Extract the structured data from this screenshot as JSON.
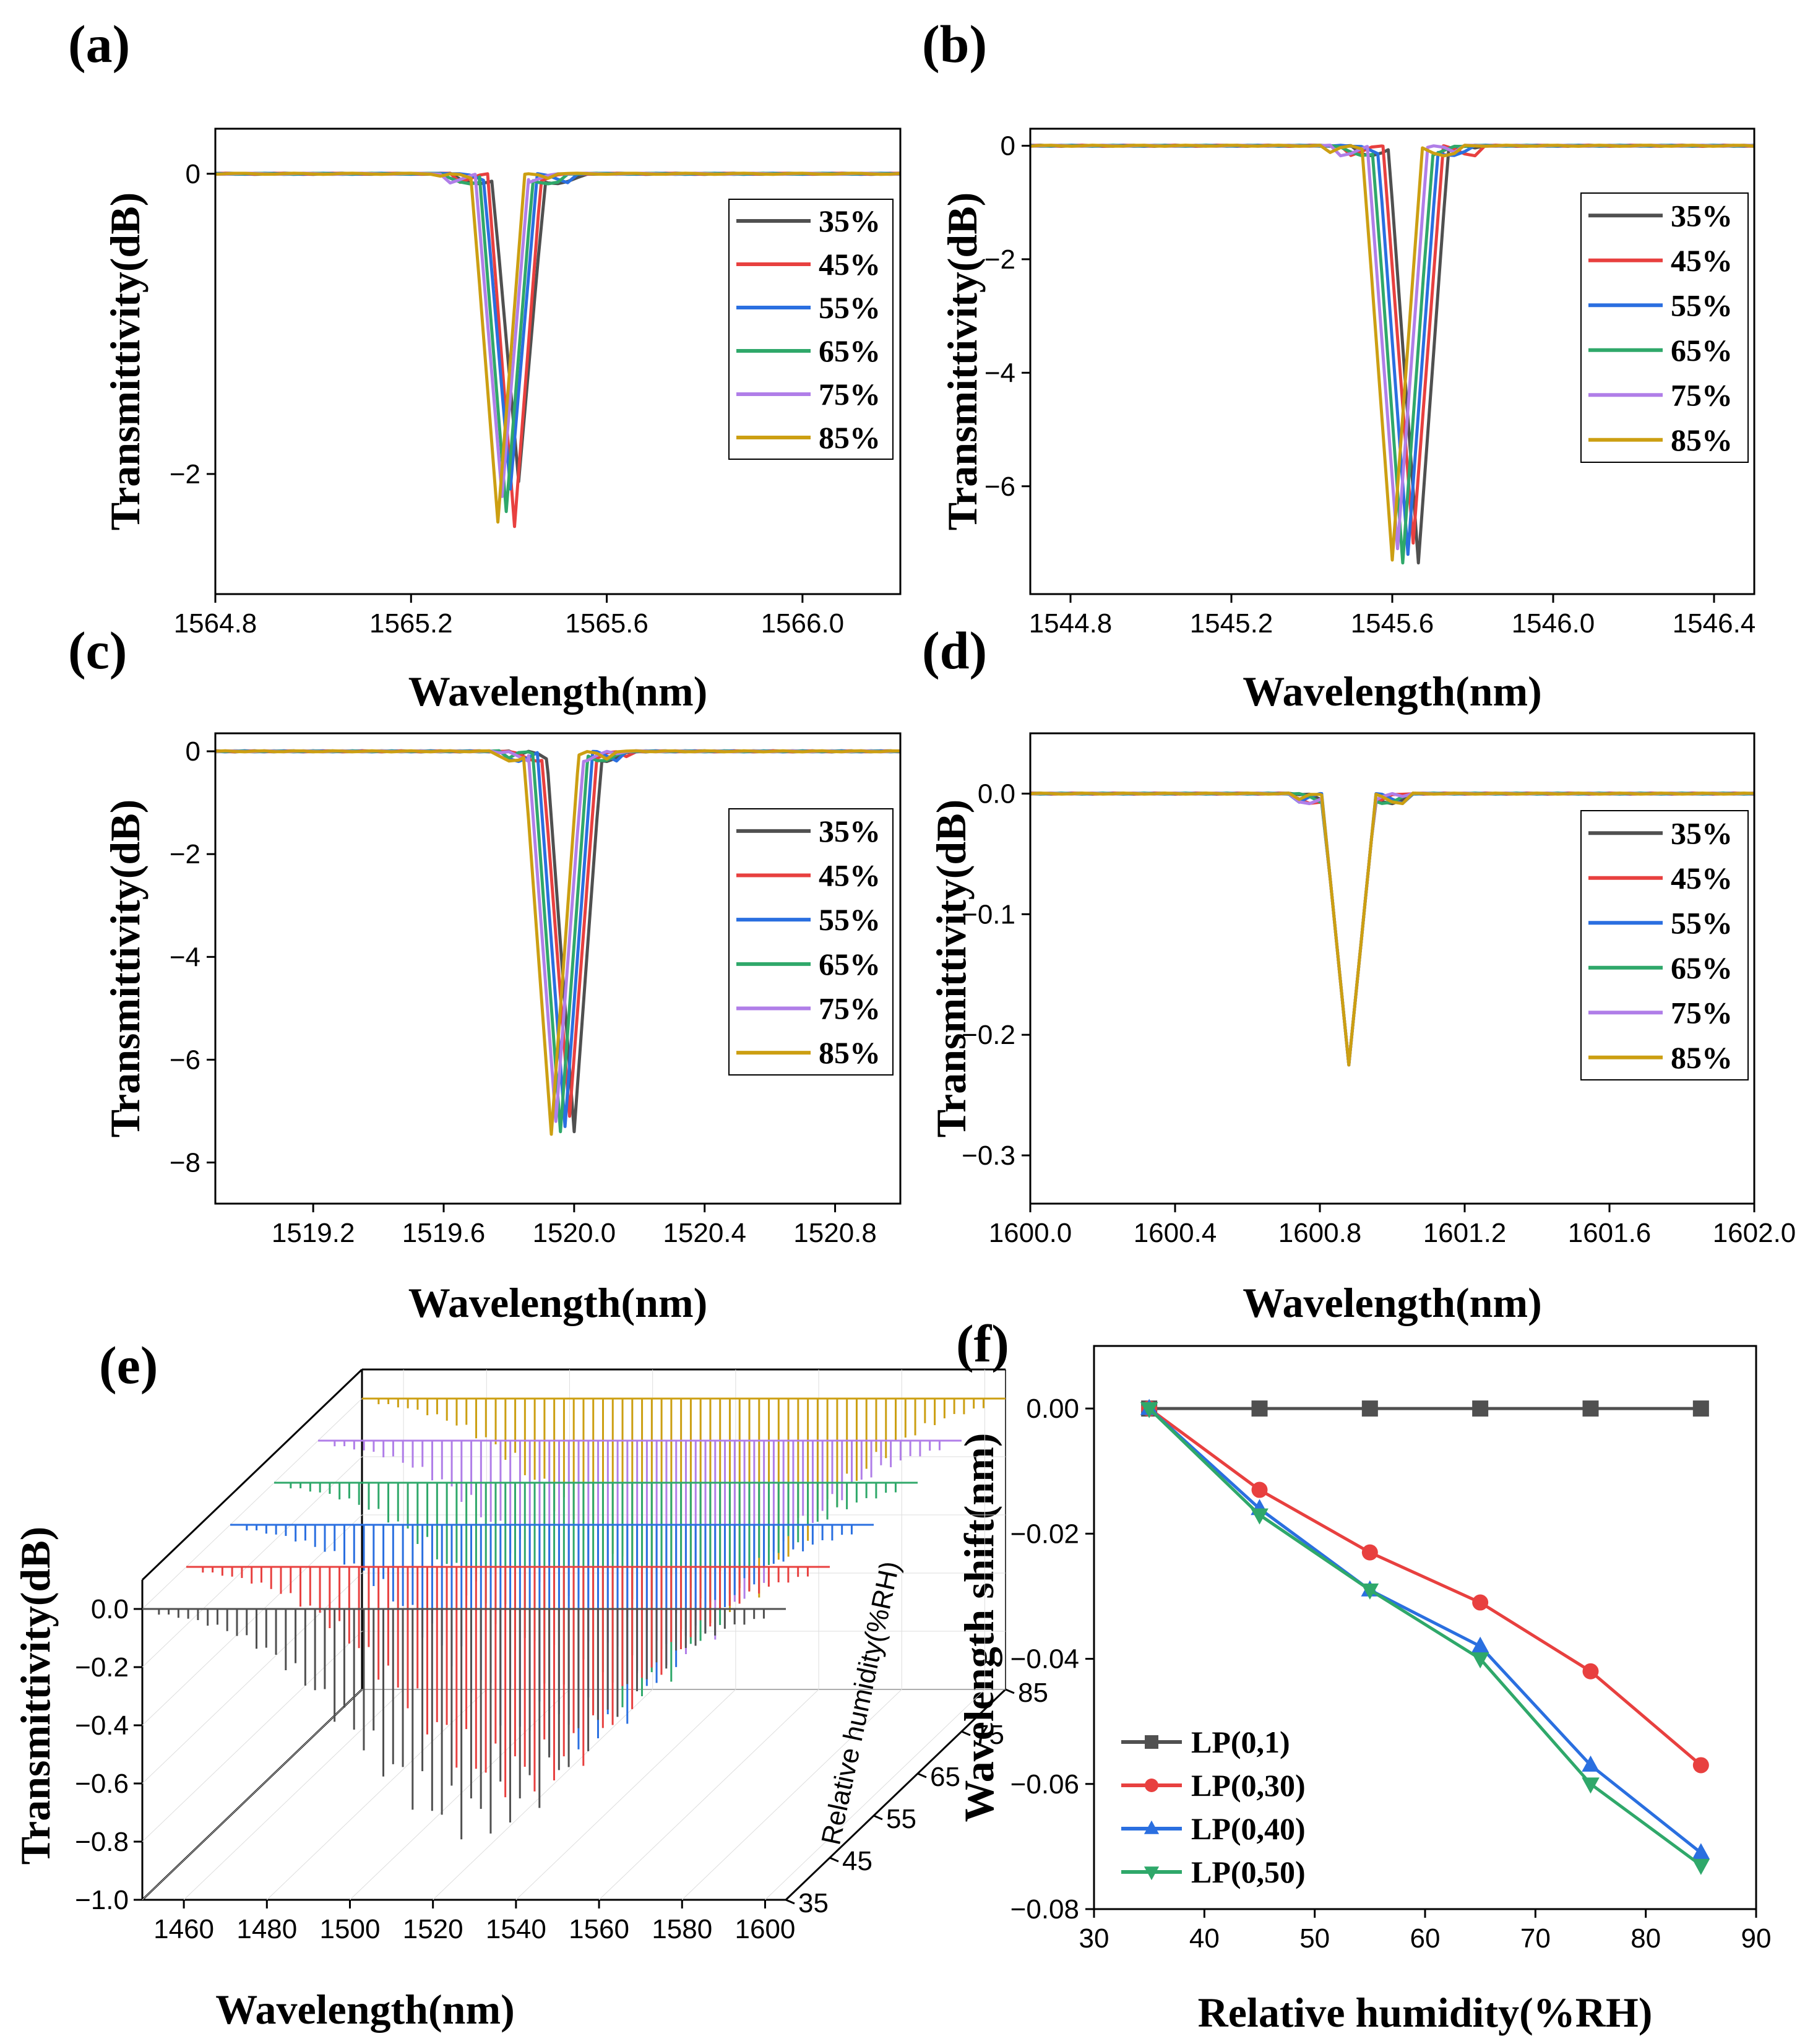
{
  "figure": {
    "colors": {
      "35%": "#505050",
      "45%": "#e8403f",
      "55%": "#2a6fe0",
      "65%": "#2fa86a",
      "75%": "#b07ee8",
      "85%": "#cc9f12",
      "LP(0,1)": "#505050",
      "LP(0,30)": "#e8403f",
      "LP(0,40)": "#2a6fe0",
      "LP(0,50)": "#2fa86a"
    }
  },
  "chart_data": [
    {
      "id": "a",
      "panel_label": "(a)",
      "type": "line",
      "xlabel": "Wavelength(nm)",
      "ylabel": "Transmittivity(dB)",
      "xlim": [
        1564.8,
        1566.2
      ],
      "ylim": [
        -2.8,
        0.3
      ],
      "xticks": [
        "1564.8",
        "1565.2",
        "1565.6",
        "1566.0"
      ],
      "xtick_values": [
        1564.8,
        1565.2,
        1565.6,
        1566.0
      ],
      "yticks": [
        "0",
        "−2"
      ],
      "ytick_values": [
        0,
        -2
      ],
      "dip_center": 1565.42,
      "dip_shift_per_10RH": -0.0085,
      "dip_halfwidth": 0.055,
      "legend": [
        "35%",
        "45%",
        "55%",
        "65%",
        "75%",
        "85%"
      ],
      "series": [
        {
          "name": "35%",
          "dip_depth": -2.05
        },
        {
          "name": "45%",
          "dip_depth": -2.35
        },
        {
          "name": "55%",
          "dip_depth": -2.1
        },
        {
          "name": "65%",
          "dip_depth": -2.25
        },
        {
          "name": "75%",
          "dip_depth": -2.15
        },
        {
          "name": "85%",
          "dip_depth": -2.32
        }
      ]
    },
    {
      "id": "b",
      "panel_label": "(b)",
      "type": "line",
      "xlabel": "Wavelength(nm)",
      "ylabel": "Transmittivity(dB)",
      "xlim": [
        1544.7,
        1546.5
      ],
      "ylim": [
        -7.9,
        0.3
      ],
      "xticks": [
        "1544.8",
        "1545.2",
        "1545.6",
        "1546.0",
        "1546.4"
      ],
      "xtick_values": [
        1544.8,
        1545.2,
        1545.6,
        1546.0,
        1546.4
      ],
      "yticks": [
        "0",
        "−2",
        "−4",
        "−6"
      ],
      "ytick_values": [
        0,
        -2,
        -4,
        -6
      ],
      "dip_center": 1545.665,
      "dip_shift_per_10RH": -0.013,
      "dip_halfwidth": 0.075,
      "legend": [
        "35%",
        "45%",
        "55%",
        "65%",
        "75%",
        "85%"
      ],
      "series": [
        {
          "name": "35%",
          "dip_depth": -7.35
        },
        {
          "name": "45%",
          "dip_depth": -7.0
        },
        {
          "name": "55%",
          "dip_depth": -7.2
        },
        {
          "name": "65%",
          "dip_depth": -7.35
        },
        {
          "name": "75%",
          "dip_depth": -7.1
        },
        {
          "name": "85%",
          "dip_depth": -7.3
        }
      ]
    },
    {
      "id": "c",
      "panel_label": "(c)",
      "type": "line",
      "xlabel": "Wavelength(nm)",
      "ylabel": "Transmittivity(dB)",
      "xlim": [
        1518.9,
        1521.0
      ],
      "ylim": [
        -8.8,
        0.35
      ],
      "xticks": [
        "1519.2",
        "1519.6",
        "1520.0",
        "1520.4",
        "1520.8"
      ],
      "xtick_values": [
        1519.2,
        1519.6,
        1520.0,
        1520.4,
        1520.8
      ],
      "yticks": [
        "0",
        "−2",
        "−4",
        "−6",
        "−8"
      ],
      "ytick_values": [
        0,
        -2,
        -4,
        -6,
        -8
      ],
      "dip_center": 1520.0,
      "dip_shift_per_10RH": -0.014,
      "dip_halfwidth": 0.085,
      "legend": [
        "35%",
        "45%",
        "55%",
        "65%",
        "75%",
        "85%"
      ],
      "series": [
        {
          "name": "35%",
          "dip_depth": -7.4
        },
        {
          "name": "45%",
          "dip_depth": -7.1
        },
        {
          "name": "55%",
          "dip_depth": -7.3
        },
        {
          "name": "65%",
          "dip_depth": -7.4
        },
        {
          "name": "75%",
          "dip_depth": -7.2
        },
        {
          "name": "85%",
          "dip_depth": -7.45
        }
      ]
    },
    {
      "id": "d",
      "panel_label": "(d)",
      "type": "line",
      "xlabel": "Wavelength(nm)",
      "ylabel": "Transmittivity(dB)",
      "xlim": [
        1600.0,
        1602.0
      ],
      "ylim": [
        -0.34,
        0.05
      ],
      "xticks": [
        "1600.0",
        "1600.4",
        "1600.8",
        "1601.2",
        "1601.6",
        "1602.0"
      ],
      "xtick_values": [
        1600.0,
        1600.4,
        1600.8,
        1601.2,
        1601.6,
        1602.0
      ],
      "yticks": [
        "0.0",
        "−0.1",
        "−0.2",
        "−0.3"
      ],
      "ytick_values": [
        0.0,
        -0.1,
        -0.2,
        -0.3
      ],
      "dip_center": 1600.88,
      "dip_shift_per_10RH": 0.0,
      "dip_halfwidth": 0.075,
      "legend": [
        "35%",
        "45%",
        "55%",
        "65%",
        "75%",
        "85%"
      ],
      "series": [
        {
          "name": "35%",
          "dip_depth": -0.225
        },
        {
          "name": "45%",
          "dip_depth": -0.225
        },
        {
          "name": "55%",
          "dip_depth": -0.225
        },
        {
          "name": "65%",
          "dip_depth": -0.225
        },
        {
          "name": "75%",
          "dip_depth": -0.225
        },
        {
          "name": "85%",
          "dip_depth": -0.225
        }
      ]
    },
    {
      "id": "e",
      "panel_label": "(e)",
      "type": "line",
      "subtype": "3d-waterfall",
      "xlabel": "Wavelength(nm)",
      "ylabel": "Transmittivity(dB)",
      "zlabel": "Relative humidity(%RH)",
      "xlim": [
        1450,
        1605
      ],
      "ylim": [
        -1.0,
        0.1
      ],
      "xticks": [
        "1460",
        "1480",
        "1500",
        "1520",
        "1540",
        "1560",
        "1580",
        "1600"
      ],
      "xtick_values": [
        1460,
        1480,
        1500,
        1520,
        1540,
        1560,
        1580,
        1600
      ],
      "yticks": [
        "0.0",
        "−0.2",
        "−0.4",
        "−0.6",
        "−0.8",
        "−1.0"
      ],
      "ytick_values": [
        0.0,
        -0.2,
        -0.4,
        -0.6,
        -0.8,
        -1.0
      ],
      "zticks": [
        "35",
        "45",
        "55",
        "65",
        "75",
        "85"
      ],
      "ztick_values": [
        35,
        45,
        55,
        65,
        75,
        85
      ],
      "peak_center": 1530,
      "peak_sigma": 28,
      "peak_depth": -0.8,
      "series": [
        "35%",
        "45%",
        "55%",
        "65%",
        "75%",
        "85%"
      ]
    },
    {
      "id": "f",
      "panel_label": "(f)",
      "type": "line",
      "xlabel": "Relative humidity(%RH)",
      "ylabel": "Wavelength shift(nm)",
      "xlim": [
        30,
        90
      ],
      "ylim": [
        -0.08,
        0.01
      ],
      "xticks": [
        "30",
        "40",
        "50",
        "60",
        "70",
        "80",
        "90"
      ],
      "xtick_values": [
        30,
        40,
        50,
        60,
        70,
        80,
        90
      ],
      "yticks": [
        "0.00",
        "−0.02",
        "−0.04",
        "−0.06",
        "−0.08"
      ],
      "ytick_values": [
        0.0,
        -0.02,
        -0.04,
        -0.06,
        -0.08
      ],
      "x": [
        35,
        45,
        55,
        65,
        75,
        85
      ],
      "series": [
        {
          "name": "LP(0,1)",
          "marker": "square",
          "values": [
            0,
            0,
            0,
            0,
            0,
            0
          ]
        },
        {
          "name": "LP(0,30)",
          "marker": "circle",
          "values": [
            0,
            -0.013,
            -0.023,
            -0.031,
            -0.042,
            -0.057
          ]
        },
        {
          "name": "LP(0,40)",
          "marker": "triangle-up",
          "values": [
            0,
            -0.016,
            -0.029,
            -0.038,
            -0.057,
            -0.071
          ]
        },
        {
          "name": "LP(0,50)",
          "marker": "triangle-down",
          "values": [
            0,
            -0.017,
            -0.029,
            -0.04,
            -0.06,
            -0.073
          ]
        }
      ]
    }
  ]
}
